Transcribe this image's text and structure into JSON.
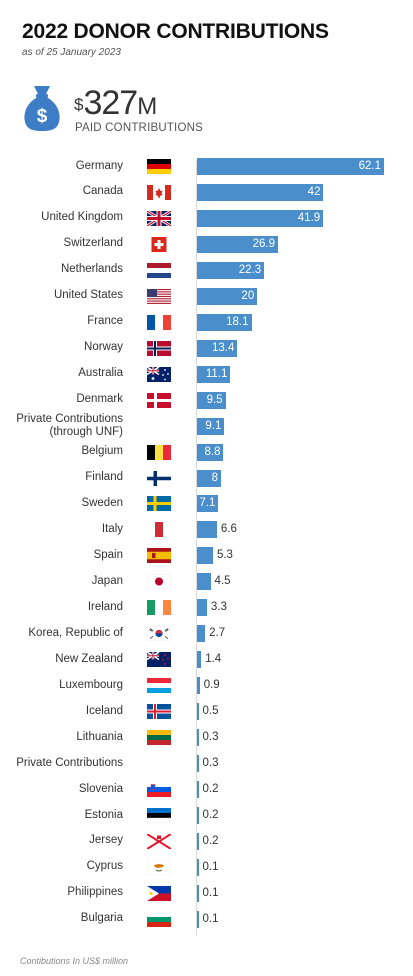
{
  "title": "2022 DONOR CONTRIBUTIONS",
  "subtitle": "as of 25 January 2023",
  "total": {
    "currency": "$",
    "amount": "327",
    "suffix": "M",
    "label": "PAID CONTRIBUTIONS"
  },
  "footnote": "Contibutions In US$ million",
  "colors": {
    "bar": "#4a8fcb",
    "title": "#111111",
    "icon": "#3d7dc6"
  },
  "chart_data": {
    "type": "bar",
    "orientation": "horizontal",
    "title": "2022 DONOR CONTRIBUTIONS",
    "unit": "US$ million",
    "categories": [
      "Germany",
      "Canada",
      "United Kingdom",
      "Switzerland",
      "Netherlands",
      "United States",
      "France",
      "Norway",
      "Australia",
      "Denmark",
      "Private Contributions (through UNF)",
      "Belgium",
      "Finland",
      "Sweden",
      "Italy",
      "Spain",
      "Japan",
      "Ireland",
      "Korea, Republic of",
      "New Zealand",
      "Luxembourg",
      "Iceland",
      "Lithuania",
      "Private Contributions",
      "Slovenia",
      "Estonia",
      "Jersey",
      "Cyprus",
      "Philippines",
      "Bulgaria"
    ],
    "values": [
      62.1,
      42,
      41.9,
      26.9,
      22.3,
      20,
      18.1,
      13.4,
      11.1,
      9.5,
      9.1,
      8.8,
      8,
      7.1,
      6.6,
      5.3,
      4.5,
      3.3,
      2.7,
      1.4,
      0.9,
      0.5,
      0.3,
      0.3,
      0.2,
      0.2,
      0.2,
      0.1,
      0.1,
      0.1
    ],
    "labels": [
      "62.1",
      "42",
      "41.9",
      "26.9",
      "22.3",
      "20",
      "18.1",
      "13.4",
      "11.1",
      "9.5",
      "9.1",
      "8.8",
      "8",
      "7.1",
      "6.6",
      "5.3",
      "4.5",
      "3.3",
      "2.7",
      "1.4",
      "0.9",
      "0.5",
      "0.3",
      "0.3",
      "0.2",
      "0.2",
      "0.2",
      "0.1",
      "0.1",
      "0.1"
    ],
    "xlim": [
      0,
      62.1
    ]
  },
  "rows": [
    {
      "country": "Germany",
      "label_lines": [
        "Germany"
      ],
      "flag": "germany-flag"
    },
    {
      "country": "Canada",
      "label_lines": [
        "Canada"
      ],
      "flag": "canada-flag"
    },
    {
      "country": "United Kingdom",
      "label_lines": [
        "United Kingdom"
      ],
      "flag": "united-kingdom-flag"
    },
    {
      "country": "Switzerland",
      "label_lines": [
        "Switzerland"
      ],
      "flag": "switzerland-flag"
    },
    {
      "country": "Netherlands",
      "label_lines": [
        "Netherlands"
      ],
      "flag": "netherlands-flag"
    },
    {
      "country": "United States",
      "label_lines": [
        "United States"
      ],
      "flag": "united-states-flag"
    },
    {
      "country": "France",
      "label_lines": [
        "France"
      ],
      "flag": "france-flag"
    },
    {
      "country": "Norway",
      "label_lines": [
        "Norway"
      ],
      "flag": "norway-flag"
    },
    {
      "country": "Australia",
      "label_lines": [
        "Australia"
      ],
      "flag": "australia-flag"
    },
    {
      "country": "Denmark",
      "label_lines": [
        "Denmark"
      ],
      "flag": "denmark-flag"
    },
    {
      "country": "Private Contributions (through UNF)",
      "label_lines": [
        "Private Contributions",
        "(through UNF)"
      ],
      "flag": ""
    },
    {
      "country": "Belgium",
      "label_lines": [
        "Belgium"
      ],
      "flag": "belgium-flag"
    },
    {
      "country": "Finland",
      "label_lines": [
        "Finland"
      ],
      "flag": "finland-flag"
    },
    {
      "country": "Sweden",
      "label_lines": [
        "Sweden"
      ],
      "flag": "sweden-flag"
    },
    {
      "country": "Italy",
      "label_lines": [
        "Italy"
      ],
      "flag": "italy-flag"
    },
    {
      "country": "Spain",
      "label_lines": [
        "Spain"
      ],
      "flag": "spain-flag"
    },
    {
      "country": "Japan",
      "label_lines": [
        "Japan"
      ],
      "flag": "japan-flag"
    },
    {
      "country": "Ireland",
      "label_lines": [
        "Ireland"
      ],
      "flag": "ireland-flag"
    },
    {
      "country": "Korea, Republic of",
      "label_lines": [
        "Korea, Republic of"
      ],
      "flag": "korea-flag"
    },
    {
      "country": "New Zealand",
      "label_lines": [
        "New Zealand"
      ],
      "flag": "new-zealand-flag"
    },
    {
      "country": "Luxembourg",
      "label_lines": [
        "Luxembourg"
      ],
      "flag": "luxembourg-flag"
    },
    {
      "country": "Iceland",
      "label_lines": [
        "Iceland"
      ],
      "flag": "iceland-flag"
    },
    {
      "country": "Lithuania",
      "label_lines": [
        "Lithuania"
      ],
      "flag": "lithuania-flag"
    },
    {
      "country": "Private Contributions",
      "label_lines": [
        "Private Contributions"
      ],
      "flag": ""
    },
    {
      "country": "Slovenia",
      "label_lines": [
        "Slovenia"
      ],
      "flag": "slovenia-flag"
    },
    {
      "country": "Estonia",
      "label_lines": [
        "Estonia"
      ],
      "flag": "estonia-flag"
    },
    {
      "country": "Jersey",
      "label_lines": [
        "Jersey"
      ],
      "flag": "jersey-flag"
    },
    {
      "country": "Cyprus",
      "label_lines": [
        "Cyprus"
      ],
      "flag": "cyprus-flag"
    },
    {
      "country": "Philippines",
      "label_lines": [
        "Philippines"
      ],
      "flag": "philippines-flag"
    },
    {
      "country": "Bulgaria",
      "label_lines": [
        "Bulgaria"
      ],
      "flag": "bulgaria-flag"
    }
  ]
}
